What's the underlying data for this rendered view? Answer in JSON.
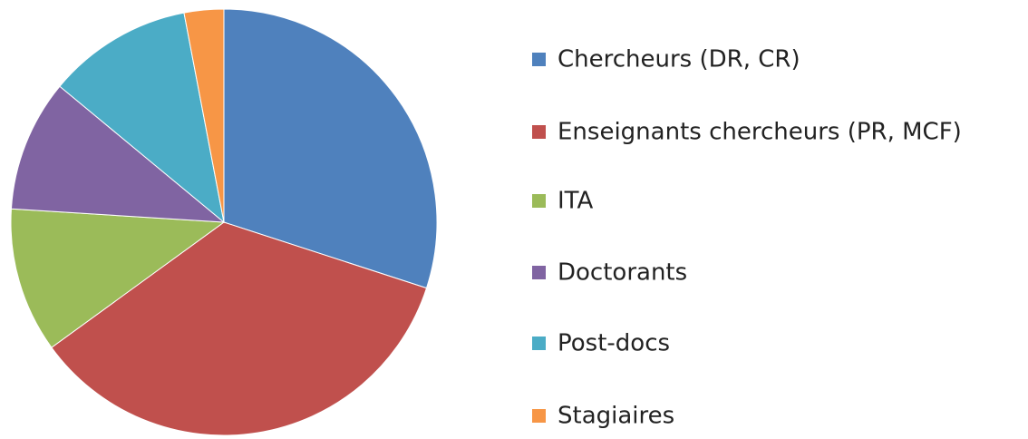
{
  "chart_data": {
    "type": "pie",
    "categories": [
      "Chercheurs (DR, CR)",
      "Enseignants chercheurs (PR, MCF)",
      "ITA",
      "Doctorants",
      "Post-docs",
      "Stagiaires"
    ],
    "values": [
      30,
      35,
      11,
      10,
      11,
      3
    ],
    "colors": [
      "#4f81bd",
      "#c0504d",
      "#9bbb59",
      "#8064a2",
      "#4bacc6",
      "#f79646"
    ],
    "legend": "right"
  }
}
